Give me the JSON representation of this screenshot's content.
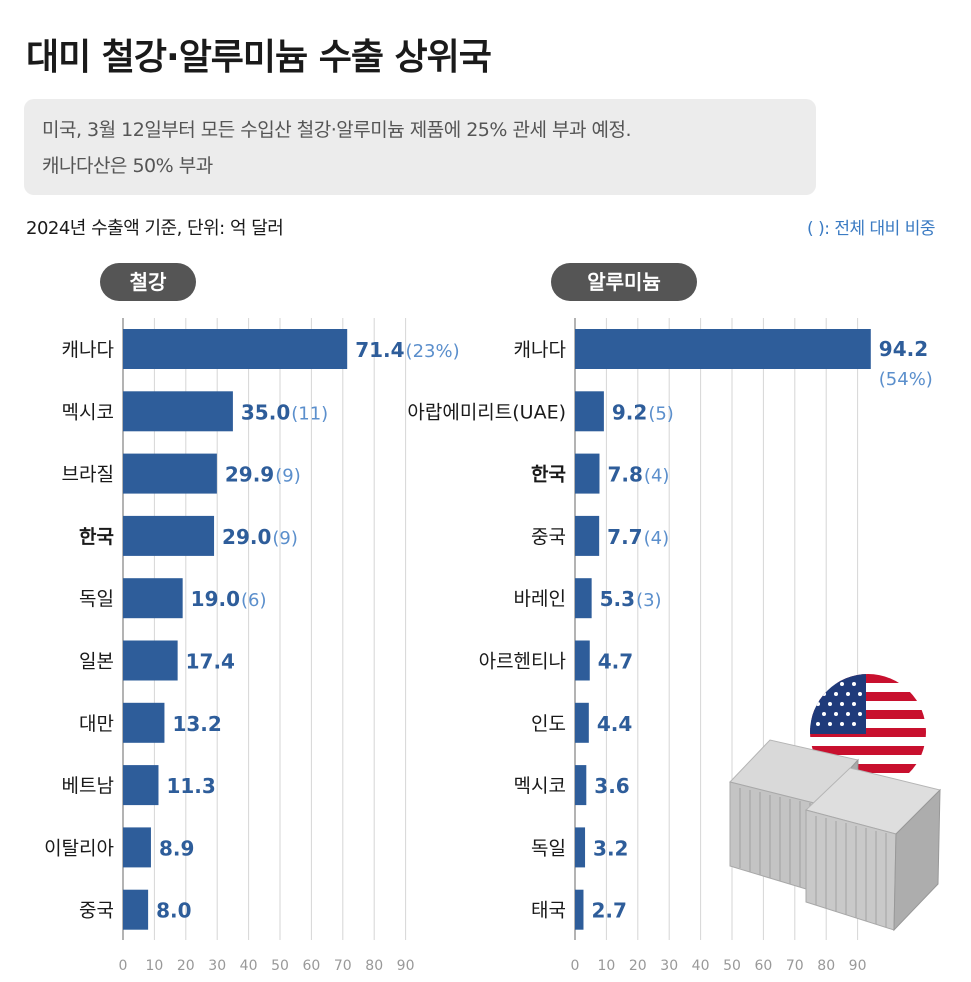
{
  "header": {
    "title": "대미 철강·알루미늄 수출 상위국",
    "subtitle_line1": "미국, 3월 12일부터 모든 수입산 철강·알루미늄 제품에 25% 관세 부과 예정.",
    "subtitle_line2": "캐나다산은 50% 부과",
    "basis": "2024년 수출액 기준, 단위: 억 달러",
    "share_note": "( ): 전체 대비 비중"
  },
  "colors": {
    "bar": "#2e5d9a",
    "value_text": "#2e5d9a",
    "share_text": "#5b8fcc",
    "pill": "#555555",
    "grid": "#d6d6d6"
  },
  "icons": [
    "us-flag-icon",
    "shipping-container-icon"
  ],
  "chart_data": [
    {
      "type": "bar",
      "orientation": "horizontal",
      "title": "철강",
      "categories": [
        "캐나다",
        "멕시코",
        "브라질",
        "한국",
        "독일",
        "일본",
        "대만",
        "베트남",
        "이탈리아",
        "중국"
      ],
      "values": [
        71.4,
        35.0,
        29.9,
        29.0,
        19.0,
        17.4,
        13.2,
        11.3,
        8.9,
        8.0
      ],
      "value_labels": [
        "71.4",
        "35.0",
        "29.9",
        "29.0",
        "19.0",
        "17.4",
        "13.2",
        "11.3",
        "8.9",
        "8.0"
      ],
      "shares": [
        "(23%)",
        "(11)",
        "(9)",
        "(9)",
        "(6)",
        "",
        "",
        "",
        "",
        ""
      ],
      "highlight": "한국",
      "xlim": [
        0,
        90
      ],
      "xticks": [
        "0",
        "10",
        "20",
        "30",
        "40",
        "50",
        "60",
        "70",
        "80",
        "90"
      ],
      "grid": true
    },
    {
      "type": "bar",
      "orientation": "horizontal",
      "title": "알루미늄",
      "categories": [
        "캐나다",
        "아랍에미리트(UAE)",
        "한국",
        "중국",
        "바레인",
        "아르헨티나",
        "인도",
        "멕시코",
        "독일",
        "태국"
      ],
      "values": [
        94.2,
        9.2,
        7.8,
        7.7,
        5.3,
        4.7,
        4.4,
        3.6,
        3.2,
        2.7
      ],
      "value_labels": [
        "94.2",
        "9.2",
        "7.8",
        "7.7",
        "5.3",
        "4.7",
        "4.4",
        "3.6",
        "3.2",
        "2.7"
      ],
      "shares": [
        "(54%)",
        "(5)",
        "(4)",
        "(4)",
        "(3)",
        "",
        "",
        "",
        "",
        ""
      ],
      "highlight": "한국",
      "xlim": [
        0,
        90
      ],
      "xticks": [
        "0",
        "10",
        "20",
        "30",
        "40",
        "50",
        "60",
        "70",
        "80",
        "90"
      ],
      "grid": true
    }
  ]
}
